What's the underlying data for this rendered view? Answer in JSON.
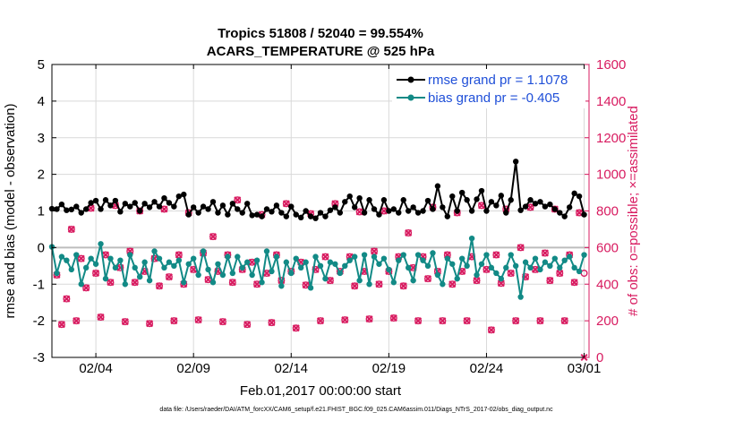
{
  "chart_data": {
    "type": "line",
    "title_line1": "Tropics 51808 / 52040 = 99.554%",
    "title_line2": "ACARS_TEMPERATURE @ 525 hPa",
    "xlabel": "Feb.01,2017 00:00:00 start",
    "ylabel_left": "rmse and bias (model - observation)",
    "ylabel_right": "# of obs: o=possible; ×=assimilated",
    "footer": "data file: /Users/raeder/DAI/ATM_forcXX/CAM6_setup/f.e21.FHIST_BGC.f09_025.CAM6assim.011/Diags_NTrS_2017-02/obs_diag_output.nc",
    "xlim": [
      0.75,
      28.25
    ],
    "ylim_left": [
      -3,
      5
    ],
    "ylim_right": [
      0,
      1600
    ],
    "x_ticks": [
      3,
      8,
      13,
      18,
      23,
      28
    ],
    "x_tick_labels": [
      "02/04",
      "02/09",
      "02/14",
      "02/19",
      "02/24",
      "03/01"
    ],
    "y_ticks_left": [
      -3,
      -2,
      -1,
      0,
      1,
      2,
      3,
      4,
      5
    ],
    "y_ticks_right": [
      0,
      200,
      400,
      600,
      800,
      1000,
      1200,
      1400,
      1600
    ],
    "grid": true,
    "legend_position": "top-right",
    "colors": {
      "rmse": "#000000",
      "bias": "#128a86",
      "obs": "#d81b60",
      "legend_text": "#1f4fd8",
      "right_axis": "#d81b60",
      "grid": "#d9d9d9",
      "zero_line": "#bdbdbd"
    },
    "rmse_series": {
      "name": "rmse grand pr = 1.1078",
      "x": [
        0.75,
        1.0,
        1.25,
        1.5,
        1.75,
        2.0,
        2.25,
        2.5,
        2.75,
        3.0,
        3.25,
        3.5,
        3.75,
        4.0,
        4.25,
        4.5,
        4.75,
        5.0,
        5.25,
        5.5,
        5.75,
        6.0,
        6.25,
        6.5,
        6.75,
        7.0,
        7.25,
        7.5,
        7.75,
        8.0,
        8.25,
        8.5,
        8.75,
        9.0,
        9.25,
        9.5,
        9.75,
        10.0,
        10.25,
        10.5,
        10.75,
        11.0,
        11.25,
        11.5,
        11.75,
        12.0,
        12.25,
        12.5,
        12.75,
        13.0,
        13.25,
        13.5,
        13.75,
        14.0,
        14.25,
        14.5,
        14.75,
        15.0,
        15.25,
        15.5,
        15.75,
        16.0,
        16.25,
        16.5,
        16.75,
        17.0,
        17.25,
        17.5,
        17.75,
        18.0,
        18.25,
        18.5,
        18.75,
        19.0,
        19.25,
        19.5,
        19.75,
        20.0,
        20.25,
        20.5,
        20.75,
        21.0,
        21.25,
        21.5,
        21.75,
        22.0,
        22.25,
        22.5,
        22.75,
        23.0,
        23.25,
        23.5,
        23.75,
        24.0,
        24.25,
        24.5,
        24.75,
        25.0,
        25.25,
        25.5,
        25.75,
        26.0,
        26.25,
        26.5,
        26.75,
        27.0,
        27.25,
        27.5,
        27.75,
        28.0
      ],
      "values": [
        1.06,
        1.05,
        1.18,
        1.02,
        1.04,
        1.12,
        0.95,
        1.05,
        1.22,
        1.28,
        1.05,
        1.3,
        1.15,
        1.28,
        0.98,
        1.2,
        1.12,
        1.22,
        1.0,
        1.2,
        1.1,
        1.25,
        1.12,
        1.35,
        1.22,
        1.12,
        1.4,
        1.45,
        0.9,
        1.1,
        0.95,
        1.12,
        1.05,
        1.25,
        0.95,
        1.15,
        0.9,
        1.2,
        1.05,
        0.95,
        1.2,
        0.88,
        0.9,
        0.85,
        1.05,
        0.98,
        1.15,
        0.95,
        0.85,
        1.12,
        0.9,
        0.82,
        1.0,
        0.85,
        0.8,
        0.95,
        0.85,
        1.02,
        1.1,
        0.95,
        1.25,
        1.4,
        1.1,
        1.35,
        0.95,
        1.3,
        1.05,
        0.9,
        1.3,
        1.0,
        1.05,
        0.95,
        1.3,
        1.0,
        1.1,
        0.95,
        1.0,
        1.28,
        1.05,
        1.68,
        1.1,
        0.85,
        1.4,
        1.0,
        1.5,
        1.3,
        1.0,
        1.32,
        1.55,
        1.0,
        1.25,
        1.15,
        1.42,
        0.95,
        1.3,
        2.35,
        1.02,
        1.12,
        1.3,
        1.2,
        1.25,
        1.12,
        1.18,
        1.05,
        0.95,
        0.85,
        1.1,
        1.48,
        1.4,
        0.9
      ]
    },
    "bias_series": {
      "name": "bias grand pr = -0.405",
      "x": [
        0.75,
        1.0,
        1.25,
        1.5,
        1.75,
        2.0,
        2.25,
        2.5,
        2.75,
        3.0,
        3.25,
        3.5,
        3.75,
        4.0,
        4.25,
        4.5,
        4.75,
        5.0,
        5.25,
        5.5,
        5.75,
        6.0,
        6.25,
        6.5,
        6.75,
        7.0,
        7.25,
        7.5,
        7.75,
        8.0,
        8.25,
        8.5,
        8.75,
        9.0,
        9.25,
        9.5,
        9.75,
        10.0,
        10.25,
        10.5,
        10.75,
        11.0,
        11.25,
        11.5,
        11.75,
        12.0,
        12.25,
        12.5,
        12.75,
        13.0,
        13.25,
        13.5,
        13.75,
        14.0,
        14.25,
        14.5,
        14.75,
        15.0,
        15.25,
        15.5,
        15.75,
        16.0,
        16.25,
        16.5,
        16.75,
        17.0,
        17.25,
        17.5,
        17.75,
        18.0,
        18.25,
        18.5,
        18.75,
        19.0,
        19.25,
        19.5,
        19.75,
        20.0,
        20.25,
        20.5,
        20.75,
        21.0,
        21.25,
        21.5,
        21.75,
        22.0,
        22.25,
        22.5,
        22.75,
        23.0,
        23.25,
        23.5,
        23.75,
        24.0,
        24.25,
        24.5,
        24.75,
        25.0,
        25.25,
        25.5,
        25.75,
        26.0,
        26.25,
        26.5,
        26.75,
        27.0,
        27.25,
        27.5,
        27.75,
        28.0
      ],
      "values": [
        0.02,
        -0.7,
        -0.25,
        -0.35,
        -0.6,
        -0.2,
        -1.0,
        -0.55,
        -0.3,
        -0.45,
        0.1,
        -0.85,
        -0.3,
        -0.55,
        -0.35,
        -1.0,
        -0.2,
        -0.55,
        -0.8,
        -0.4,
        -0.9,
        -0.1,
        -0.3,
        -0.55,
        -0.4,
        -0.5,
        -0.35,
        -0.95,
        -0.45,
        -0.3,
        -0.75,
        -0.1,
        -0.6,
        -0.95,
        -0.45,
        -0.75,
        -0.25,
        -0.7,
        -0.25,
        -0.55,
        -0.4,
        -0.75,
        -0.35,
        -0.95,
        -0.1,
        -0.65,
        -0.25,
        -1.05,
        -0.4,
        -0.7,
        -0.3,
        -0.55,
        -0.4,
        -1.1,
        -0.25,
        -0.5,
        -0.85,
        -0.4,
        -0.45,
        -0.7,
        -0.5,
        -0.35,
        -0.25,
        -0.9,
        -0.2,
        -1.0,
        -0.25,
        -0.45,
        -0.3,
        -0.6,
        -0.95,
        -0.35,
        -0.2,
        -0.55,
        -0.9,
        -0.2,
        -0.35,
        -0.5,
        -0.15,
        -0.75,
        -1.0,
        -0.3,
        -0.45,
        -0.85,
        -0.3,
        -0.5,
        0.25,
        -0.75,
        -0.45,
        -0.2,
        -0.55,
        -0.7,
        -0.85,
        -0.55,
        -0.2,
        -0.5,
        -1.35,
        -0.4,
        -0.55,
        -0.3,
        -0.6,
        -0.4,
        -0.5,
        -0.3,
        -0.55,
        -0.35,
        -0.25,
        -0.55,
        -0.65,
        -0.2
      ]
    },
    "obs_possible": {
      "x": [
        1.0,
        1.25,
        1.5,
        1.75,
        2.0,
        2.25,
        2.5,
        2.75,
        3.0,
        3.25,
        3.5,
        3.75,
        4.0,
        4.25,
        4.5,
        4.75,
        5.0,
        5.25,
        5.5,
        5.75,
        6.0,
        6.25,
        6.5,
        6.75,
        7.0,
        7.25,
        7.5,
        7.75,
        8.0,
        8.25,
        8.5,
        8.75,
        9.0,
        9.25,
        9.5,
        9.75,
        10.0,
        10.25,
        10.5,
        10.75,
        11.0,
        11.25,
        11.5,
        11.75,
        12.0,
        12.25,
        12.5,
        12.75,
        13.0,
        13.25,
        13.5,
        13.75,
        14.0,
        14.25,
        14.5,
        14.75,
        15.0,
        15.25,
        15.5,
        15.75,
        16.0,
        16.25,
        16.5,
        16.75,
        17.0,
        17.25,
        17.5,
        17.75,
        18.0,
        18.25,
        18.5,
        18.75,
        19.0,
        19.25,
        19.5,
        19.75,
        20.0,
        20.25,
        20.5,
        20.75,
        21.0,
        21.25,
        21.5,
        21.75,
        22.0,
        22.25,
        22.5,
        22.75,
        23.0,
        23.25,
        23.5,
        23.75,
        24.0,
        24.25,
        24.5,
        24.75,
        25.0,
        25.25,
        25.5,
        25.75,
        26.0,
        26.25,
        26.5,
        26.75,
        27.0,
        27.25,
        27.5,
        27.75,
        28.0
      ],
      "values": [
        450,
        180,
        320,
        700,
        200,
        540,
        380,
        815,
        460,
        220,
        560,
        410,
        830,
        490,
        195,
        580,
        410,
        800,
        470,
        185,
        540,
        390,
        810,
        440,
        200,
        560,
        400,
        790,
        480,
        205,
        570,
        425,
        660,
        470,
        195,
        560,
        410,
        860,
        480,
        180,
        520,
        400,
        780,
        460,
        190,
        560,
        420,
        840,
        470,
        160,
        520,
        395,
        785,
        480,
        200,
        550,
        420,
        840,
        470,
        205,
        550,
        390,
        795,
        470,
        210,
        580,
        400,
        800,
        470,
        215,
        550,
        390,
        680,
        490,
        200,
        550,
        430,
        820,
        470,
        200,
        560,
        400,
        790,
        470,
        200,
        550,
        420,
        830,
        480,
        150,
        560,
        405,
        810,
        460,
        200,
        600,
        440,
        820,
        480,
        200,
        570,
        420,
        810,
        460,
        200,
        560,
        410,
        790,
        460
      ]
    },
    "obs_assimilated": {
      "x": [
        1.0,
        1.25,
        1.5,
        1.75,
        2.0,
        2.25,
        2.5,
        2.75,
        3.0,
        3.25,
        3.5,
        3.75,
        4.0,
        4.25,
        4.5,
        4.75,
        5.0,
        5.25,
        5.5,
        5.75,
        6.0,
        6.25,
        6.5,
        6.75,
        7.0,
        7.25,
        7.5,
        7.75,
        8.0,
        8.25,
        8.5,
        8.75,
        9.0,
        9.25,
        9.5,
        9.75,
        10.0,
        10.25,
        10.5,
        10.75,
        11.0,
        11.25,
        11.5,
        11.75,
        12.0,
        12.25,
        12.5,
        12.75,
        13.0,
        13.25,
        13.5,
        13.75,
        14.0,
        14.25,
        14.5,
        14.75,
        15.0,
        15.25,
        15.5,
        15.75,
        16.0,
        16.25,
        16.5,
        16.75,
        17.0,
        17.25,
        17.5,
        17.75,
        18.0,
        18.25,
        18.5,
        18.75,
        19.0,
        19.25,
        19.5,
        19.75,
        20.0,
        20.25,
        20.5,
        20.75,
        21.0,
        21.25,
        21.5,
        21.75,
        22.0,
        22.25,
        22.5,
        22.75,
        23.0,
        23.25,
        23.5,
        23.75,
        24.0,
        24.25,
        24.5,
        24.75,
        25.0,
        25.25,
        25.5,
        25.75,
        26.0,
        26.25,
        26.5,
        26.75,
        27.0,
        27.25,
        27.5,
        27.75,
        28.0
      ],
      "values": [
        450,
        180,
        320,
        700,
        200,
        540,
        380,
        815,
        460,
        220,
        560,
        410,
        830,
        490,
        195,
        580,
        410,
        800,
        470,
        185,
        540,
        390,
        810,
        440,
        200,
        560,
        400,
        790,
        480,
        205,
        570,
        425,
        660,
        470,
        195,
        560,
        410,
        860,
        480,
        180,
        520,
        400,
        780,
        460,
        190,
        560,
        420,
        840,
        470,
        160,
        520,
        395,
        785,
        480,
        200,
        550,
        420,
        840,
        470,
        205,
        550,
        390,
        795,
        470,
        210,
        580,
        400,
        800,
        470,
        215,
        550,
        390,
        680,
        490,
        200,
        550,
        430,
        820,
        470,
        200,
        560,
        400,
        790,
        470,
        200,
        550,
        420,
        830,
        480,
        150,
        560,
        405,
        810,
        460,
        200,
        600,
        440,
        820,
        480,
        200,
        570,
        420,
        810,
        460,
        200,
        560,
        410,
        790,
        0
      ]
    }
  }
}
